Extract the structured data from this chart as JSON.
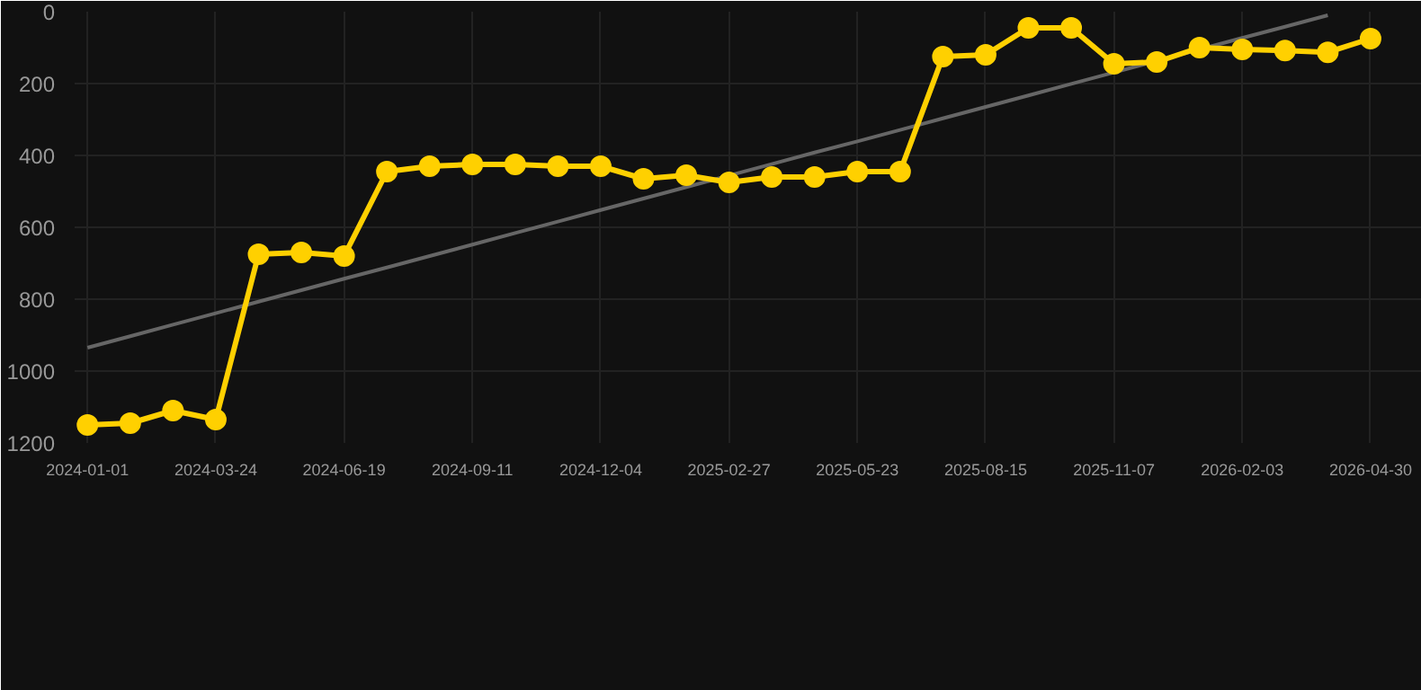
{
  "chart_data": {
    "type": "line",
    "categories": [
      "2024-01-01",
      null,
      null,
      "2024-03-24",
      null,
      null,
      "2024-06-19",
      null,
      null,
      "2024-09-11",
      null,
      null,
      "2024-12-04",
      null,
      null,
      "2025-02-27",
      null,
      null,
      "2025-05-23",
      null,
      null,
      "2025-08-15",
      null,
      null,
      "2025-11-07",
      null,
      null,
      "2026-02-03",
      null,
      null,
      "2026-04-30"
    ],
    "series": [
      {
        "color": "#ffd000",
        "marker": "circle",
        "values": [
          1150,
          1145,
          1110,
          1135,
          675,
          670,
          680,
          445,
          430,
          425,
          425,
          430,
          430,
          465,
          455,
          475,
          460,
          460,
          445,
          445,
          125,
          120,
          45,
          45,
          145,
          140,
          100,
          105,
          108,
          113,
          75
        ]
      },
      {
        "color": "#666666",
        "marker": "none",
        "values": [
          935,
          903,
          871,
          839,
          807,
          775,
          743,
          712,
          680,
          648,
          616,
          584,
          552,
          520,
          488,
          456,
          424,
          392,
          361,
          329,
          297,
          265,
          233,
          201,
          169,
          137,
          105,
          73,
          42,
          10,
          null
        ]
      }
    ],
    "ylim": [
      1200,
      0
    ],
    "yticks": [
      0,
      200,
      400,
      600,
      800,
      1000,
      1200
    ],
    "grid": true
  }
}
